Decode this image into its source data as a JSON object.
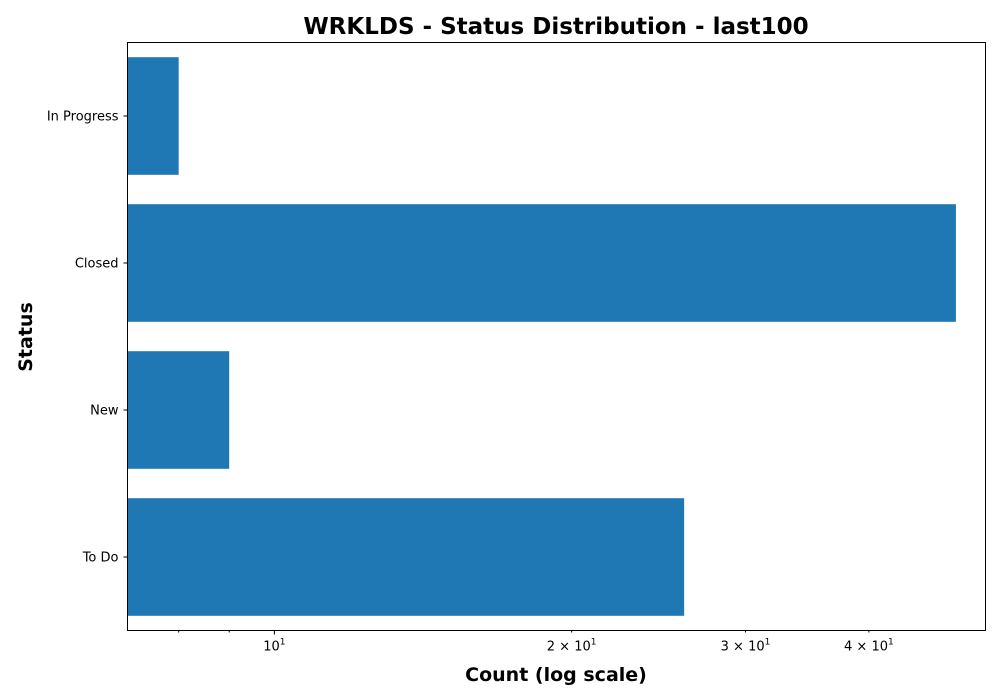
{
  "chart_data": {
    "type": "bar",
    "orientation": "horizontal",
    "title": "WRKLDS - Status Distribution - last100",
    "xlabel": "Count (log scale)",
    "ylabel": "Status",
    "x_scale": "log",
    "xlim": [
      7.1,
      52.5
    ],
    "categories": [
      "In Progress",
      "Closed",
      "New",
      "To Do"
    ],
    "values": [
      8,
      49,
      9,
      26
    ],
    "bar_color": "#1f77b4",
    "grid": false,
    "legend": "none",
    "major_ticks": [
      {
        "value": 10,
        "base": "10",
        "exponent": "1",
        "prefix": ""
      }
    ],
    "minor_tick_values": [
      8,
      9,
      20,
      30,
      40
    ],
    "minor_tick_labels": [
      {
        "value": 20,
        "prefix": "2 × ",
        "base": "10",
        "exponent": "1"
      },
      {
        "value": 30,
        "prefix": "3 × ",
        "base": "10",
        "exponent": "1"
      },
      {
        "value": 40,
        "prefix": "4 × ",
        "base": "10",
        "exponent": "1"
      }
    ]
  }
}
